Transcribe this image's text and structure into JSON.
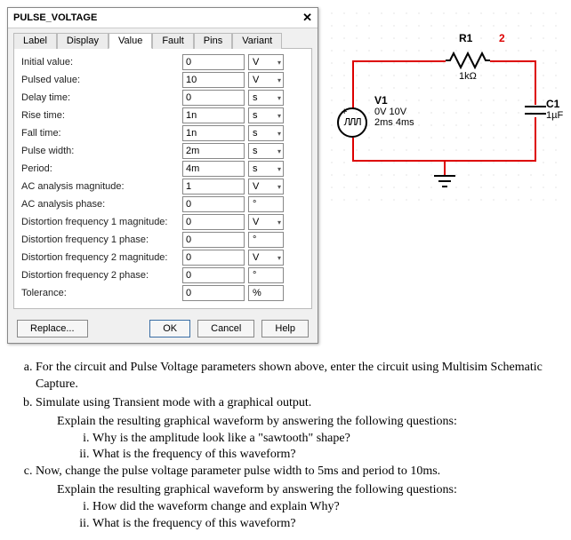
{
  "dialog": {
    "title": "PULSE_VOLTAGE",
    "tabs": [
      "Label",
      "Display",
      "Value",
      "Fault",
      "Pins",
      "Variant"
    ],
    "activeTab": 2,
    "rows": [
      {
        "label": "Initial value:",
        "value": "0",
        "unit": "V",
        "dropdown": true
      },
      {
        "label": "Pulsed value:",
        "value": "10",
        "unit": "V",
        "dropdown": true
      },
      {
        "label": "Delay time:",
        "value": "0",
        "unit": "s",
        "dropdown": true
      },
      {
        "label": "Rise time:",
        "value": "1n",
        "unit": "s",
        "dropdown": true
      },
      {
        "label": "Fall time:",
        "value": "1n",
        "unit": "s",
        "dropdown": true
      },
      {
        "label": "Pulse width:",
        "value": "2m",
        "unit": "s",
        "dropdown": true
      },
      {
        "label": "Period:",
        "value": "4m",
        "unit": "s",
        "dropdown": true
      },
      {
        "label": "AC analysis magnitude:",
        "value": "1",
        "unit": "V",
        "dropdown": true
      },
      {
        "label": "AC analysis phase:",
        "value": "0",
        "unit": "°",
        "dropdown": false
      },
      {
        "label": "Distortion frequency 1 magnitude:",
        "value": "0",
        "unit": "V",
        "dropdown": true
      },
      {
        "label": "Distortion frequency 1 phase:",
        "value": "0",
        "unit": "°",
        "dropdown": false
      },
      {
        "label": "Distortion frequency 2 magnitude:",
        "value": "0",
        "unit": "V",
        "dropdown": true
      },
      {
        "label": "Distortion frequency 2 phase:",
        "value": "0",
        "unit": "°",
        "dropdown": false
      },
      {
        "label": "Tolerance:",
        "value": "0",
        "unit": "%",
        "dropdown": false
      }
    ],
    "buttons": {
      "replace": "Replace...",
      "ok": "OK",
      "cancel": "Cancel",
      "help": "Help"
    }
  },
  "circuit": {
    "v1": {
      "name": "V1",
      "line1": "0V 10V",
      "line2": "2ms 4ms"
    },
    "r1": {
      "name": "R1",
      "value": "1kΩ"
    },
    "c1": {
      "name": "C1",
      "value": "1µF"
    },
    "node": "2",
    "wire_color": "#d00",
    "plus": "+"
  },
  "q": {
    "a": "For the circuit and Pulse Voltage parameters shown above, enter the circuit using Multisim Schematic Capture.",
    "b": "Simulate using Transient mode with a graphical output.",
    "b_expl": "Explain the resulting graphical waveform by answering the following questions:",
    "b_i": "Why is the amplitude look like a \"sawtooth\" shape?",
    "b_ii": "What is the frequency of this waveform?",
    "c": "Now, change the pulse voltage parameter pulse width to 5ms and period to 10ms.",
    "c_expl": "Explain the resulting graphical waveform by answering the following questions:",
    "c_i": "How did the waveform change and explain Why?",
    "c_ii": "What is the frequency of this waveform?"
  }
}
